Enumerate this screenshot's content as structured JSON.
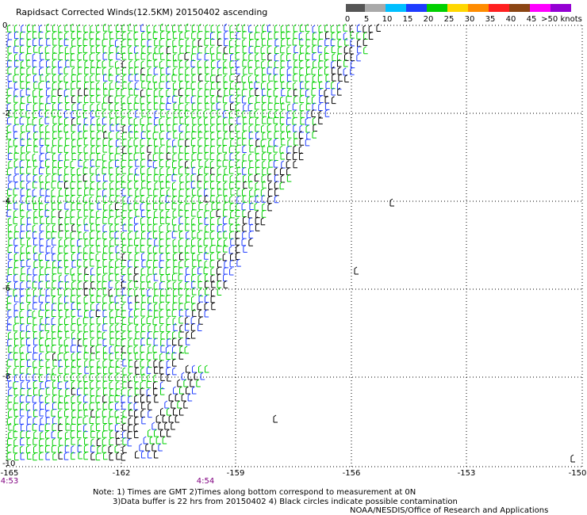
{
  "title": "Rapidsact Corrected Winds(12.5KM) 20150402 ascending",
  "legend": {
    "ticks": [
      "0",
      "5",
      "10",
      "15",
      "20",
      "25",
      "30",
      "35",
      "40",
      "45",
      ">50 knots"
    ],
    "colors": [
      "#555555",
      "#a9a9a9",
      "#00bfff",
      "#1e3cff",
      "#00d000",
      "#ffd700",
      "#ff8c00",
      "#ff2020",
      "#8b4513",
      "#ff00ff",
      "#9400d3",
      "#000000"
    ]
  },
  "map": {
    "lat_labels": [
      "0",
      "-2",
      "-4",
      "-6",
      "-8",
      "-10"
    ],
    "lon_labels": [
      "-165",
      "-162",
      "-159",
      "-156",
      "-153",
      "-150"
    ],
    "time_labels": [
      "4:53",
      "4:54"
    ],
    "grid": "dotted"
  },
  "notes": [
    "Note: 1) Times are GMT 2)Times along bottom correspond to measurement at 0N",
    "3)Data buffer is 22 hrs from 20150402 4) Black circles indicate possible contamination",
    "NOAA/NESDIS/Office of Research and Applications"
  ]
}
